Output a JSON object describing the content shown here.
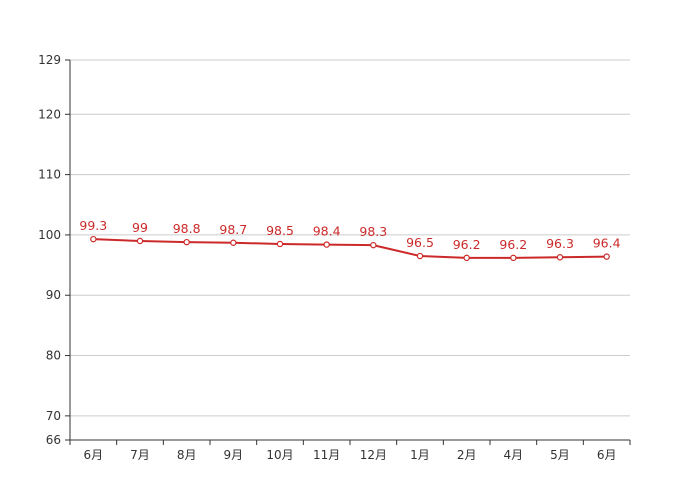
{
  "chart_data": {
    "type": "line",
    "title": "",
    "xlabel": "",
    "ylabel": "",
    "categories": [
      "6月",
      "7月",
      "8月",
      "9月",
      "10月",
      "11月",
      "12月",
      "1月",
      "2月",
      "4月",
      "5月",
      "6月"
    ],
    "series": [
      {
        "values": [
          99.3,
          99,
          98.8,
          98.7,
          98.5,
          98.4,
          98.3,
          96.5,
          96.2,
          96.2,
          96.3,
          96.4
        ]
      }
    ],
    "data_labels": [
      "99.3",
      "99",
      "98.8",
      "98.7",
      "98.5",
      "98.4",
      "98.3",
      "96.5",
      "96.2",
      "96.2",
      "96.3",
      "96.4"
    ],
    "ylim": [
      66,
      129
    ],
    "yticks": [
      66,
      70,
      80,
      90,
      100,
      110,
      120,
      129
    ],
    "ytick_labels": [
      "66",
      "70",
      "80",
      "90",
      "100",
      "110",
      "120",
      "129"
    ],
    "grid": true,
    "legend": "none",
    "colors": {
      "line": "#cc2a2a",
      "label": "#cc2a2a",
      "grid": "#cccccc",
      "axis": "#333333",
      "tick_text": "#333333",
      "marker_fill": "#ffffff"
    }
  }
}
